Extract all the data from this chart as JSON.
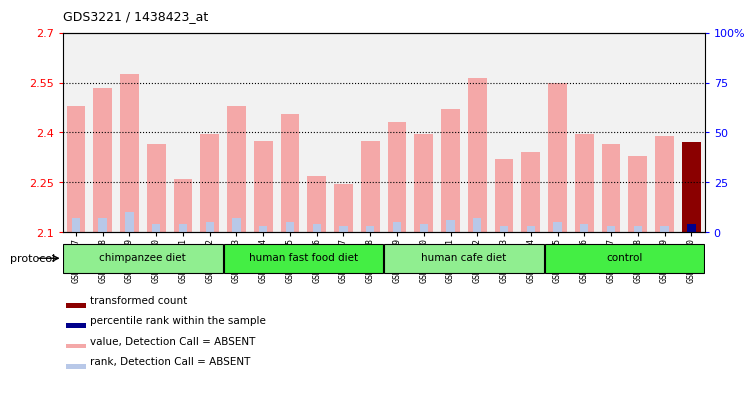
{
  "title": "GDS3221 / 1438423_at",
  "samples": [
    "GSM144707",
    "GSM144708",
    "GSM144709",
    "GSM144710",
    "GSM144711",
    "GSM144712",
    "GSM144713",
    "GSM144714",
    "GSM144715",
    "GSM144716",
    "GSM144717",
    "GSM144718",
    "GSM144719",
    "GSM144720",
    "GSM144721",
    "GSM144722",
    "GSM144723",
    "GSM144724",
    "GSM144725",
    "GSM144726",
    "GSM144727",
    "GSM144728",
    "GSM144729",
    "GSM144730"
  ],
  "values": [
    2.48,
    2.535,
    2.575,
    2.365,
    2.26,
    2.395,
    2.48,
    2.375,
    2.455,
    2.27,
    2.245,
    2.375,
    2.43,
    2.395,
    2.47,
    2.565,
    2.32,
    2.34,
    2.55,
    2.395,
    2.365,
    2.33,
    2.39,
    2.37
  ],
  "ranks_pct": [
    7,
    7,
    10,
    4,
    4,
    5,
    7,
    3,
    5,
    4,
    3,
    3,
    5,
    4,
    6,
    7,
    3,
    3,
    5,
    4,
    3,
    3,
    3,
    4
  ],
  "is_absent_value": [
    true,
    true,
    true,
    true,
    true,
    true,
    true,
    true,
    true,
    true,
    true,
    true,
    true,
    true,
    true,
    true,
    true,
    true,
    true,
    true,
    true,
    true,
    true,
    false
  ],
  "is_absent_rank": [
    true,
    true,
    true,
    true,
    true,
    true,
    true,
    true,
    true,
    true,
    true,
    true,
    true,
    true,
    true,
    true,
    true,
    true,
    true,
    true,
    true,
    true,
    true,
    false
  ],
  "groups": [
    {
      "label": "chimpanzee diet",
      "start": 0,
      "end": 5
    },
    {
      "label": "human fast food diet",
      "start": 6,
      "end": 11
    },
    {
      "label": "human cafe diet",
      "start": 12,
      "end": 17
    },
    {
      "label": "control",
      "start": 18,
      "end": 23
    }
  ],
  "ylim_left": [
    2.1,
    2.7
  ],
  "yticks_left": [
    2.1,
    2.25,
    2.4,
    2.55,
    2.7
  ],
  "yticks_right": [
    0,
    25,
    50,
    75,
    100
  ],
  "bar_color_absent": "#f4a8a8",
  "bar_color_present": "#8b0000",
  "rank_color_absent": "#b8c8e8",
  "rank_color_present": "#00008b",
  "group_color_light": "#90ee90",
  "group_color_bright": "#44ee44",
  "tick_bg_color": "#d0d0d0"
}
